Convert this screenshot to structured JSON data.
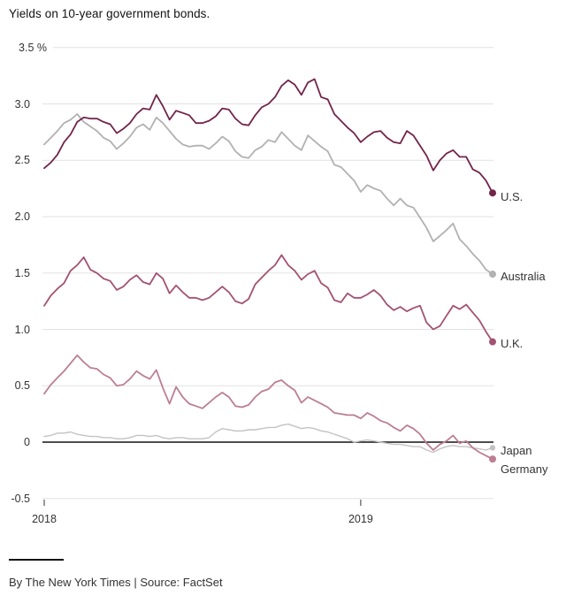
{
  "title": "Yields on 10-year government bonds.",
  "footer": {
    "credit": "By The New York Times | Source: FactSet"
  },
  "colors": {
    "grid": "#e2e2e2",
    "zero_line": "#121212",
    "axis_text": "#333333",
    "us": "#72244a",
    "australia": "#b1b1b1",
    "uk": "#a25272",
    "japan": "#c3c3c3",
    "germany": "#bc7e94"
  },
  "chart_data": {
    "type": "line",
    "title": "Yields on 10-year government bonds.",
    "unit": "%",
    "grid": "horizontal",
    "ylim": [
      -0.5,
      3.5
    ],
    "y_ticks": [
      3.5,
      3.0,
      2.5,
      2.0,
      1.5,
      1.0,
      0.5,
      0,
      -0.5
    ],
    "y_tick_labels": [
      "3.5 %",
      "3.0",
      "2.5",
      "2.0",
      "1.5",
      "1.0",
      "0.5",
      "0",
      "-0.5"
    ],
    "x_tick_labels": [
      "2018",
      "2019"
    ],
    "x_tick_week_indices": [
      0,
      48
    ],
    "x_range_note": "weekly points, Jan 2018 through late May 2019",
    "legend_position": "right-of-line-ends",
    "zero_baseline": true,
    "series": [
      {
        "name": "U.S.",
        "color_key": "us",
        "values": [
          2.43,
          2.48,
          2.55,
          2.66,
          2.73,
          2.84,
          2.88,
          2.87,
          2.87,
          2.84,
          2.82,
          2.74,
          2.78,
          2.83,
          2.91,
          2.96,
          2.95,
          3.08,
          2.98,
          2.86,
          2.94,
          2.92,
          2.9,
          2.83,
          2.83,
          2.85,
          2.89,
          2.96,
          2.95,
          2.87,
          2.82,
          2.81,
          2.9,
          2.97,
          3.0,
          3.06,
          3.16,
          3.21,
          3.17,
          3.08,
          3.19,
          3.22,
          3.06,
          3.04,
          2.91,
          2.85,
          2.79,
          2.74,
          2.66,
          2.71,
          2.75,
          2.76,
          2.7,
          2.66,
          2.65,
          2.76,
          2.72,
          2.63,
          2.54,
          2.41,
          2.5,
          2.56,
          2.59,
          2.53,
          2.53,
          2.42,
          2.39,
          2.32,
          2.21
        ]
      },
      {
        "name": "Australia",
        "color_key": "australia",
        "values": [
          2.64,
          2.7,
          2.76,
          2.83,
          2.86,
          2.91,
          2.84,
          2.8,
          2.76,
          2.7,
          2.67,
          2.6,
          2.65,
          2.71,
          2.79,
          2.82,
          2.77,
          2.88,
          2.83,
          2.76,
          2.69,
          2.64,
          2.62,
          2.63,
          2.63,
          2.6,
          2.65,
          2.71,
          2.67,
          2.58,
          2.53,
          2.52,
          2.59,
          2.62,
          2.68,
          2.66,
          2.75,
          2.69,
          2.63,
          2.59,
          2.72,
          2.67,
          2.62,
          2.58,
          2.46,
          2.44,
          2.38,
          2.32,
          2.22,
          2.28,
          2.25,
          2.23,
          2.16,
          2.1,
          2.16,
          2.1,
          2.08,
          1.99,
          1.9,
          1.78,
          1.83,
          1.88,
          1.94,
          1.8,
          1.74,
          1.67,
          1.61,
          1.53,
          1.49
        ]
      },
      {
        "name": "U.K.",
        "color_key": "uk",
        "values": [
          1.21,
          1.3,
          1.36,
          1.41,
          1.52,
          1.57,
          1.64,
          1.53,
          1.5,
          1.45,
          1.43,
          1.35,
          1.38,
          1.44,
          1.48,
          1.42,
          1.4,
          1.5,
          1.45,
          1.32,
          1.39,
          1.33,
          1.28,
          1.28,
          1.26,
          1.28,
          1.33,
          1.38,
          1.33,
          1.25,
          1.23,
          1.27,
          1.4,
          1.46,
          1.52,
          1.57,
          1.66,
          1.57,
          1.52,
          1.44,
          1.49,
          1.52,
          1.41,
          1.37,
          1.26,
          1.24,
          1.32,
          1.28,
          1.28,
          1.31,
          1.35,
          1.3,
          1.22,
          1.17,
          1.2,
          1.16,
          1.19,
          1.21,
          1.06,
          1.0,
          1.03,
          1.12,
          1.21,
          1.18,
          1.22,
          1.15,
          1.08,
          0.98,
          0.89
        ]
      },
      {
        "name": "Japan",
        "color_key": "japan",
        "values": [
          0.05,
          0.06,
          0.08,
          0.08,
          0.09,
          0.07,
          0.06,
          0.05,
          0.05,
          0.04,
          0.04,
          0.03,
          0.03,
          0.04,
          0.06,
          0.06,
          0.05,
          0.06,
          0.04,
          0.03,
          0.04,
          0.04,
          0.03,
          0.03,
          0.03,
          0.04,
          0.09,
          0.12,
          0.11,
          0.1,
          0.1,
          0.11,
          0.11,
          0.12,
          0.13,
          0.13,
          0.15,
          0.16,
          0.14,
          0.12,
          0.13,
          0.12,
          0.1,
          0.09,
          0.07,
          0.05,
          0.03,
          0.0,
          0.01,
          0.02,
          0.01,
          0.0,
          -0.01,
          -0.02,
          -0.02,
          -0.03,
          -0.04,
          -0.04,
          -0.07,
          -0.09,
          -0.06,
          -0.04,
          -0.03,
          -0.04,
          -0.04,
          -0.05,
          -0.06,
          -0.07,
          -0.05
        ]
      },
      {
        "name": "Germany",
        "color_key": "germany",
        "values": [
          0.43,
          0.51,
          0.57,
          0.63,
          0.7,
          0.77,
          0.71,
          0.66,
          0.65,
          0.6,
          0.57,
          0.5,
          0.51,
          0.56,
          0.63,
          0.59,
          0.56,
          0.64,
          0.48,
          0.34,
          0.49,
          0.4,
          0.34,
          0.32,
          0.3,
          0.35,
          0.4,
          0.44,
          0.4,
          0.32,
          0.31,
          0.33,
          0.4,
          0.45,
          0.47,
          0.53,
          0.55,
          0.5,
          0.46,
          0.35,
          0.4,
          0.37,
          0.34,
          0.31,
          0.26,
          0.25,
          0.24,
          0.24,
          0.21,
          0.26,
          0.23,
          0.19,
          0.17,
          0.13,
          0.1,
          0.15,
          0.12,
          0.07,
          -0.01,
          -0.07,
          -0.02,
          0.01,
          0.06,
          -0.01,
          0.01,
          -0.05,
          -0.09,
          -0.12,
          -0.15
        ]
      }
    ]
  }
}
